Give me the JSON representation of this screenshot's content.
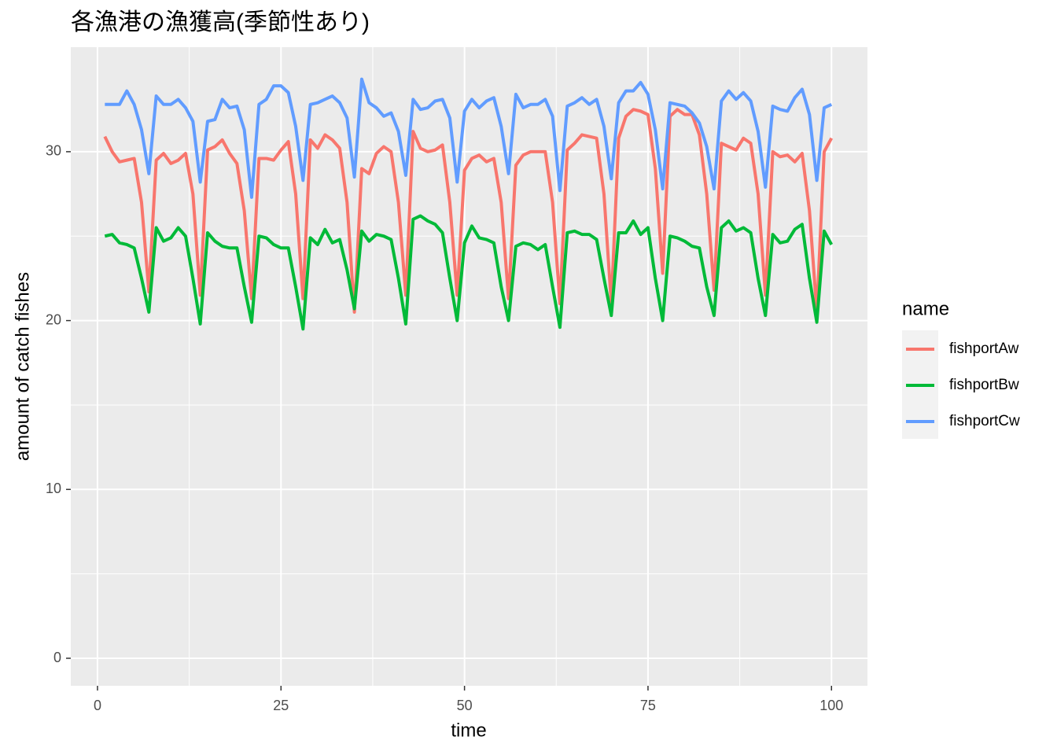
{
  "chart_data": {
    "type": "line",
    "title": "各漁港の漁獲高(季節性あり)",
    "x_label": "time",
    "y_label": "amount of catch fishes",
    "legend_title": "name",
    "legend_position": "right",
    "grid": true,
    "x": [
      1,
      2,
      3,
      4,
      5,
      6,
      7,
      8,
      9,
      10,
      11,
      12,
      13,
      14,
      15,
      16,
      17,
      18,
      19,
      20,
      21,
      22,
      23,
      24,
      25,
      26,
      27,
      28,
      29,
      30,
      31,
      32,
      33,
      34,
      35,
      36,
      37,
      38,
      39,
      40,
      41,
      42,
      43,
      44,
      45,
      46,
      47,
      48,
      49,
      50,
      51,
      52,
      53,
      54,
      55,
      56,
      57,
      58,
      59,
      60,
      61,
      62,
      63,
      64,
      65,
      66,
      67,
      68,
      69,
      70,
      71,
      72,
      73,
      74,
      75,
      76,
      77,
      78,
      79,
      80,
      81,
      82,
      83,
      84,
      85,
      86,
      87,
      88,
      89,
      90,
      91,
      92,
      93,
      94,
      95,
      96,
      97,
      98,
      99,
      100
    ],
    "series": [
      {
        "name": "fishportAw",
        "color": "#F8766D",
        "values": [
          30.9,
          30.0,
          29.4,
          29.5,
          29.6,
          27.0,
          21.7,
          29.5,
          29.9,
          29.3,
          29.5,
          29.9,
          27.5,
          21.5,
          30.1,
          30.3,
          30.7,
          29.9,
          29.3,
          26.5,
          21.3,
          29.6,
          29.6,
          29.5,
          30.1,
          30.6,
          27.5,
          21.3,
          30.7,
          30.2,
          31.0,
          30.7,
          30.2,
          27.0,
          20.5,
          29.0,
          28.7,
          29.9,
          30.3,
          30.0,
          27.0,
          21.5,
          31.2,
          30.2,
          30.0,
          30.1,
          30.4,
          27.0,
          21.5,
          28.9,
          29.6,
          29.8,
          29.4,
          29.6,
          27.0,
          21.3,
          29.2,
          29.8,
          30.0,
          30.0,
          30.0,
          27.0,
          21.0,
          30.1,
          30.5,
          31.0,
          30.9,
          30.8,
          27.5,
          21.0,
          30.8,
          32.1,
          32.5,
          32.4,
          32.2,
          29.0,
          22.8,
          32.1,
          32.5,
          32.2,
          32.2,
          31.0,
          27.5,
          21.8,
          30.5,
          30.3,
          30.1,
          30.8,
          30.5,
          27.5,
          21.5,
          30.0,
          29.7,
          29.8,
          29.4,
          29.9,
          26.5,
          20.5,
          30.0,
          30.8
        ]
      },
      {
        "name": "fishportBw",
        "color": "#00BA38",
        "values": [
          25.0,
          25.1,
          24.6,
          24.5,
          24.3,
          22.5,
          20.5,
          25.5,
          24.7,
          24.9,
          25.5,
          25.0,
          22.5,
          19.8,
          25.2,
          24.7,
          24.4,
          24.3,
          24.3,
          22.0,
          19.9,
          25.0,
          24.9,
          24.5,
          24.3,
          24.3,
          22.0,
          19.5,
          24.9,
          24.5,
          25.4,
          24.6,
          24.8,
          23.0,
          20.7,
          25.3,
          24.7,
          25.1,
          25.0,
          24.8,
          22.5,
          19.8,
          26.0,
          26.2,
          25.9,
          25.7,
          25.2,
          22.5,
          20.0,
          24.6,
          25.6,
          24.9,
          24.8,
          24.6,
          22.0,
          20.0,
          24.4,
          24.6,
          24.5,
          24.2,
          24.5,
          22.0,
          19.6,
          25.2,
          25.3,
          25.1,
          25.1,
          24.8,
          22.5,
          20.3,
          25.2,
          25.2,
          25.9,
          25.1,
          25.5,
          22.5,
          20.0,
          25.0,
          24.9,
          24.7,
          24.4,
          24.3,
          22.0,
          20.3,
          25.5,
          25.9,
          25.3,
          25.5,
          25.2,
          22.5,
          20.3,
          25.1,
          24.6,
          24.7,
          25.4,
          25.7,
          22.5,
          19.9,
          25.3,
          24.5
        ]
      },
      {
        "name": "fishportCw",
        "color": "#619CFF",
        "values": [
          32.8,
          32.8,
          32.8,
          33.6,
          32.8,
          31.3,
          28.7,
          33.3,
          32.8,
          32.8,
          33.1,
          32.6,
          31.8,
          28.2,
          31.8,
          31.9,
          33.1,
          32.6,
          32.7,
          31.3,
          27.3,
          32.8,
          33.1,
          33.9,
          33.9,
          33.5,
          31.5,
          28.3,
          32.8,
          32.9,
          33.1,
          33.3,
          32.9,
          32.0,
          28.5,
          34.3,
          32.9,
          32.6,
          32.1,
          32.3,
          31.2,
          28.6,
          33.1,
          32.5,
          32.6,
          33.0,
          33.1,
          32.0,
          28.2,
          32.4,
          33.1,
          32.6,
          33.0,
          33.2,
          31.5,
          28.7,
          33.4,
          32.6,
          32.8,
          32.8,
          33.1,
          32.1,
          27.7,
          32.7,
          32.9,
          33.2,
          32.8,
          33.1,
          31.5,
          28.4,
          32.9,
          33.6,
          33.6,
          34.1,
          33.4,
          31.3,
          27.8,
          32.9,
          32.8,
          32.7,
          32.3,
          31.7,
          30.3,
          27.8,
          33.0,
          33.6,
          33.1,
          33.5,
          33.0,
          31.2,
          27.9,
          32.7,
          32.5,
          32.4,
          33.2,
          33.7,
          32.2,
          28.3,
          32.6,
          32.8
        ]
      }
    ],
    "xlim": [
      -3.64,
      104.9
    ],
    "xticks": [
      0,
      25,
      50,
      75,
      100
    ],
    "ylim": [
      -1.63,
      36.19
    ],
    "yticks": [
      0,
      10,
      20,
      30
    ]
  }
}
